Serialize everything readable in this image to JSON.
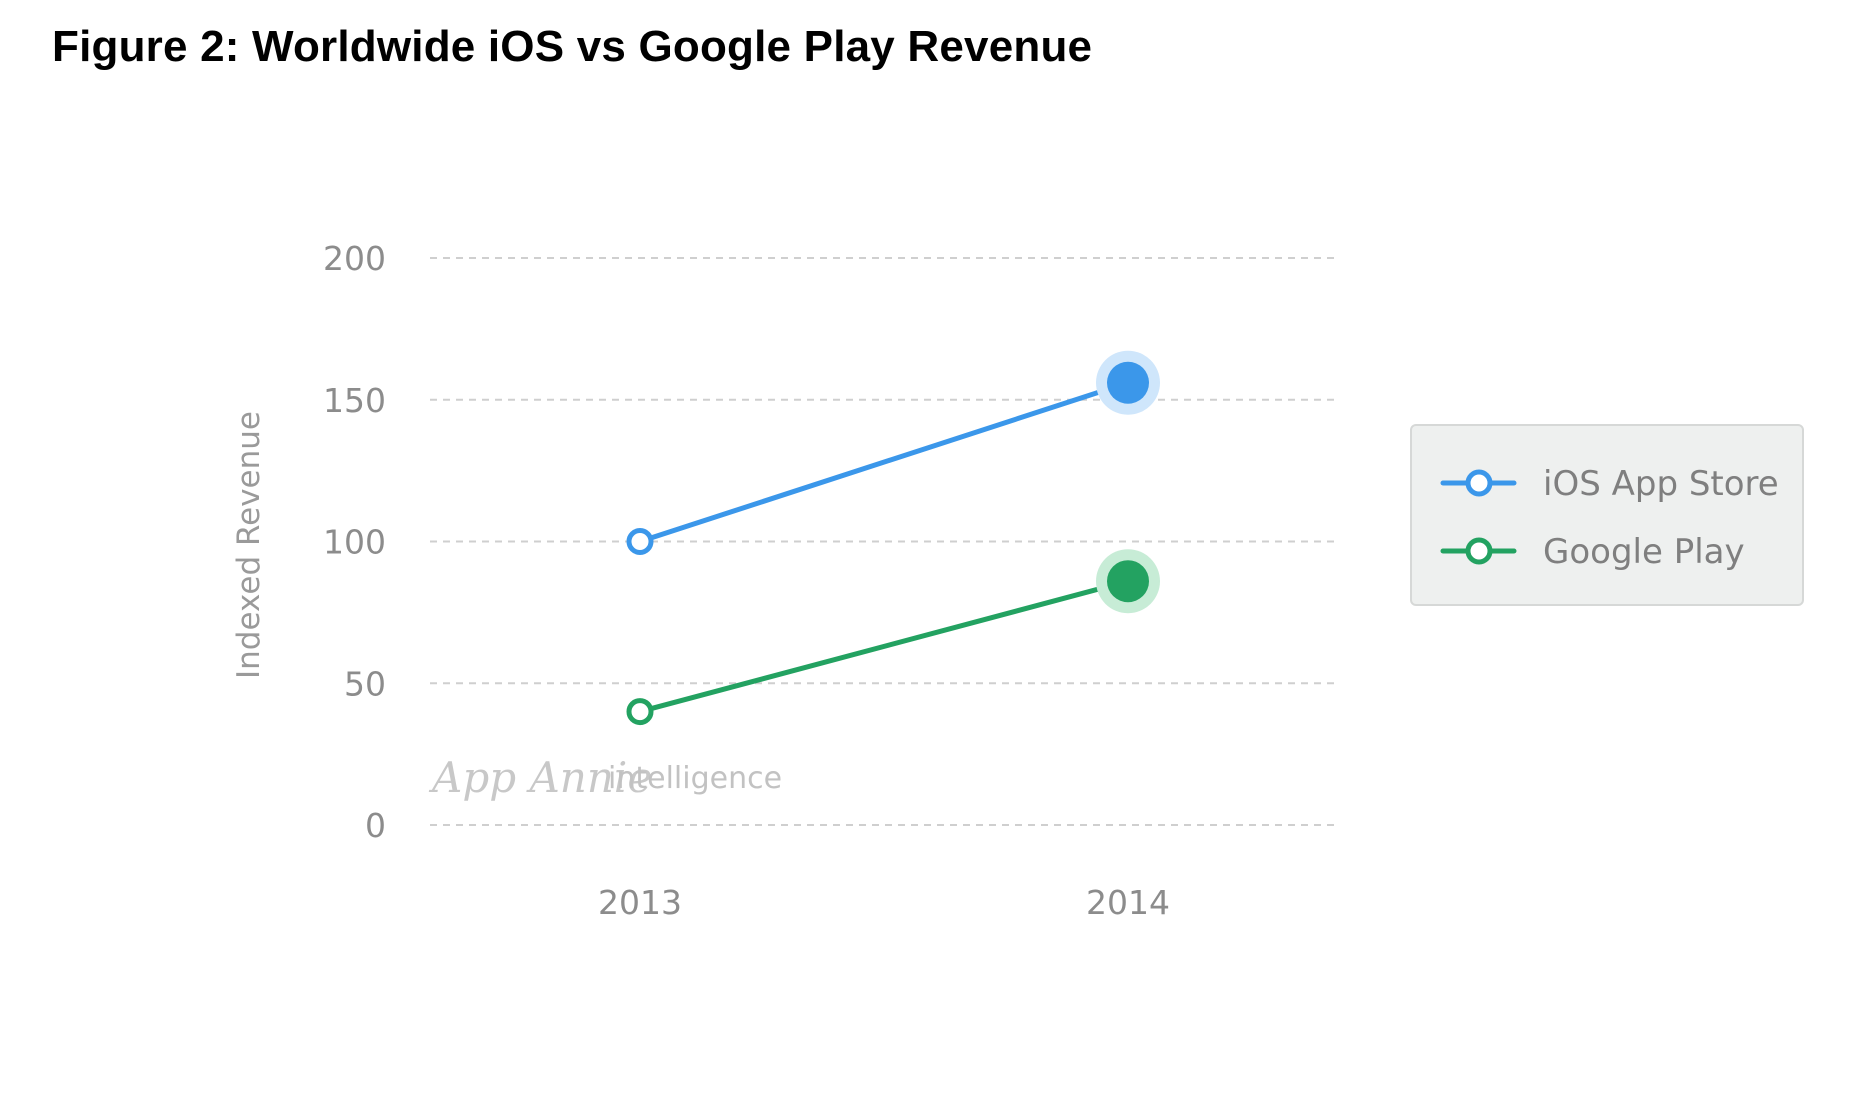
{
  "figure": {
    "title": "Figure 2: Worldwide iOS vs Google Play Revenue"
  },
  "watermark": {
    "brand": "App Annie",
    "sub": "intelligence"
  },
  "chart_data": {
    "type": "line",
    "title": "Figure 2: Worldwide iOS vs Google Play Revenue",
    "xlabel": "",
    "ylabel": "Indexed Revenue",
    "categories": [
      "2013",
      "2014"
    ],
    "ylim": [
      0,
      200
    ],
    "yticks": [
      0,
      50,
      100,
      150,
      200
    ],
    "ytick_labels": [
      "0",
      "50",
      "100",
      "150",
      "200"
    ],
    "grid": true,
    "legend_position": "right",
    "series": [
      {
        "name": "iOS App Store",
        "values": [
          100,
          156
        ],
        "color": "#3b97ea",
        "halo": "#cfe6fb"
      },
      {
        "name": "Google Play",
        "values": [
          40,
          86
        ],
        "color": "#23a261",
        "halo": "#c7ecd6"
      }
    ]
  }
}
